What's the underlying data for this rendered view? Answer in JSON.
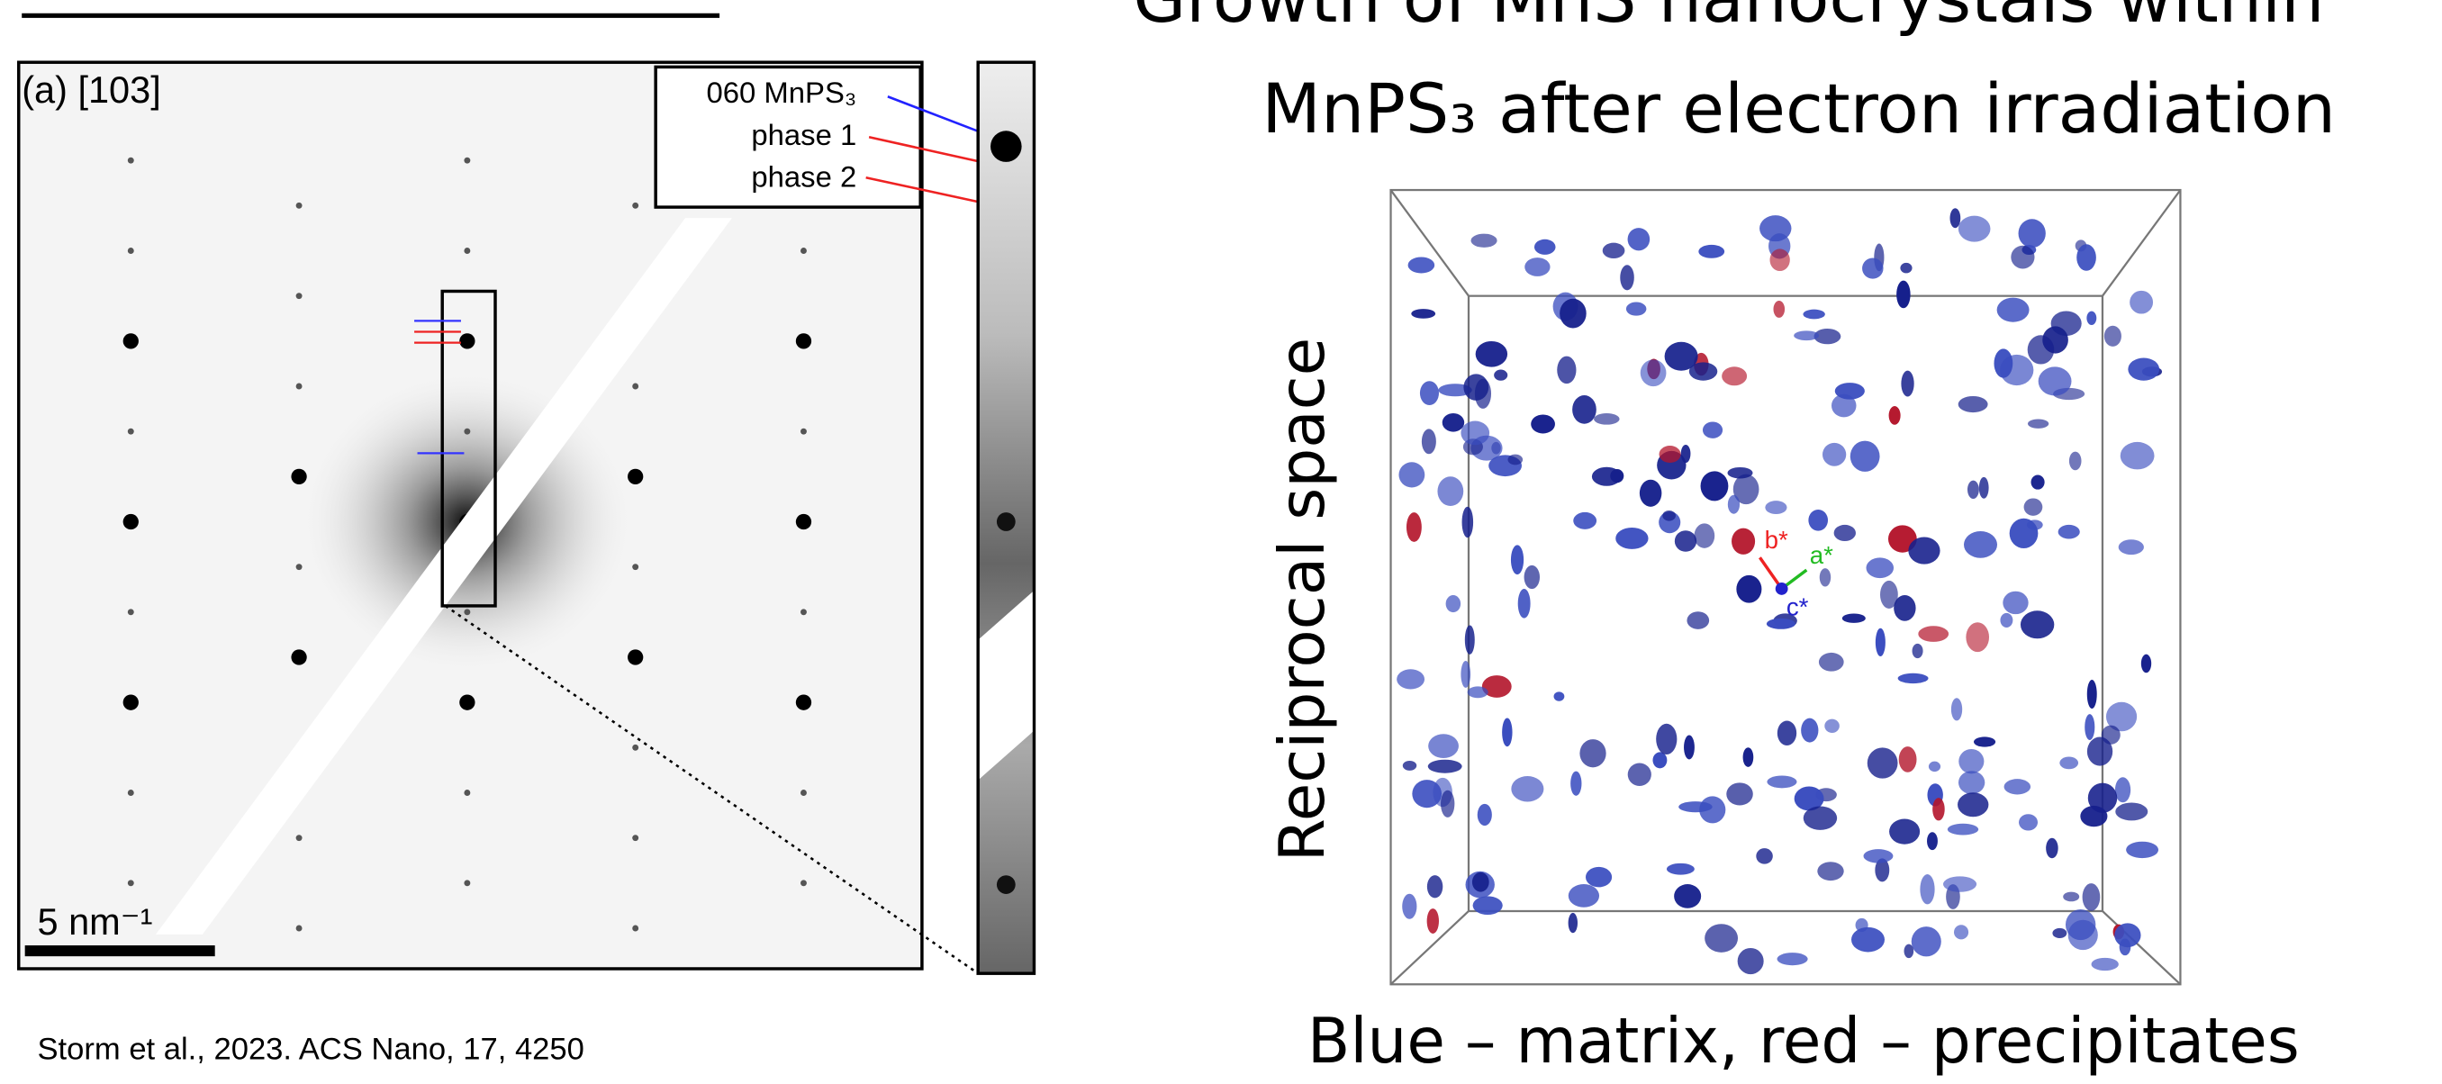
{
  "title_lines": [
    "Growth of MnS nanocrystals within",
    "MnPS₃ after electron irradiation"
  ],
  "left_figure": {
    "panel_label": "(a) [103]",
    "legend": [
      "060 MnPS₃",
      "phase 1",
      "phase 2"
    ],
    "scale_bar": "5 nm⁻¹"
  },
  "right_figure": {
    "axis_label": "Reciprocal space",
    "axes": [
      "b*",
      "a*",
      "c*"
    ]
  },
  "caption": "Blue – matrix, red – precipitates",
  "citation": "Storm et al., 2023. ACS Nano, 17, 4250"
}
